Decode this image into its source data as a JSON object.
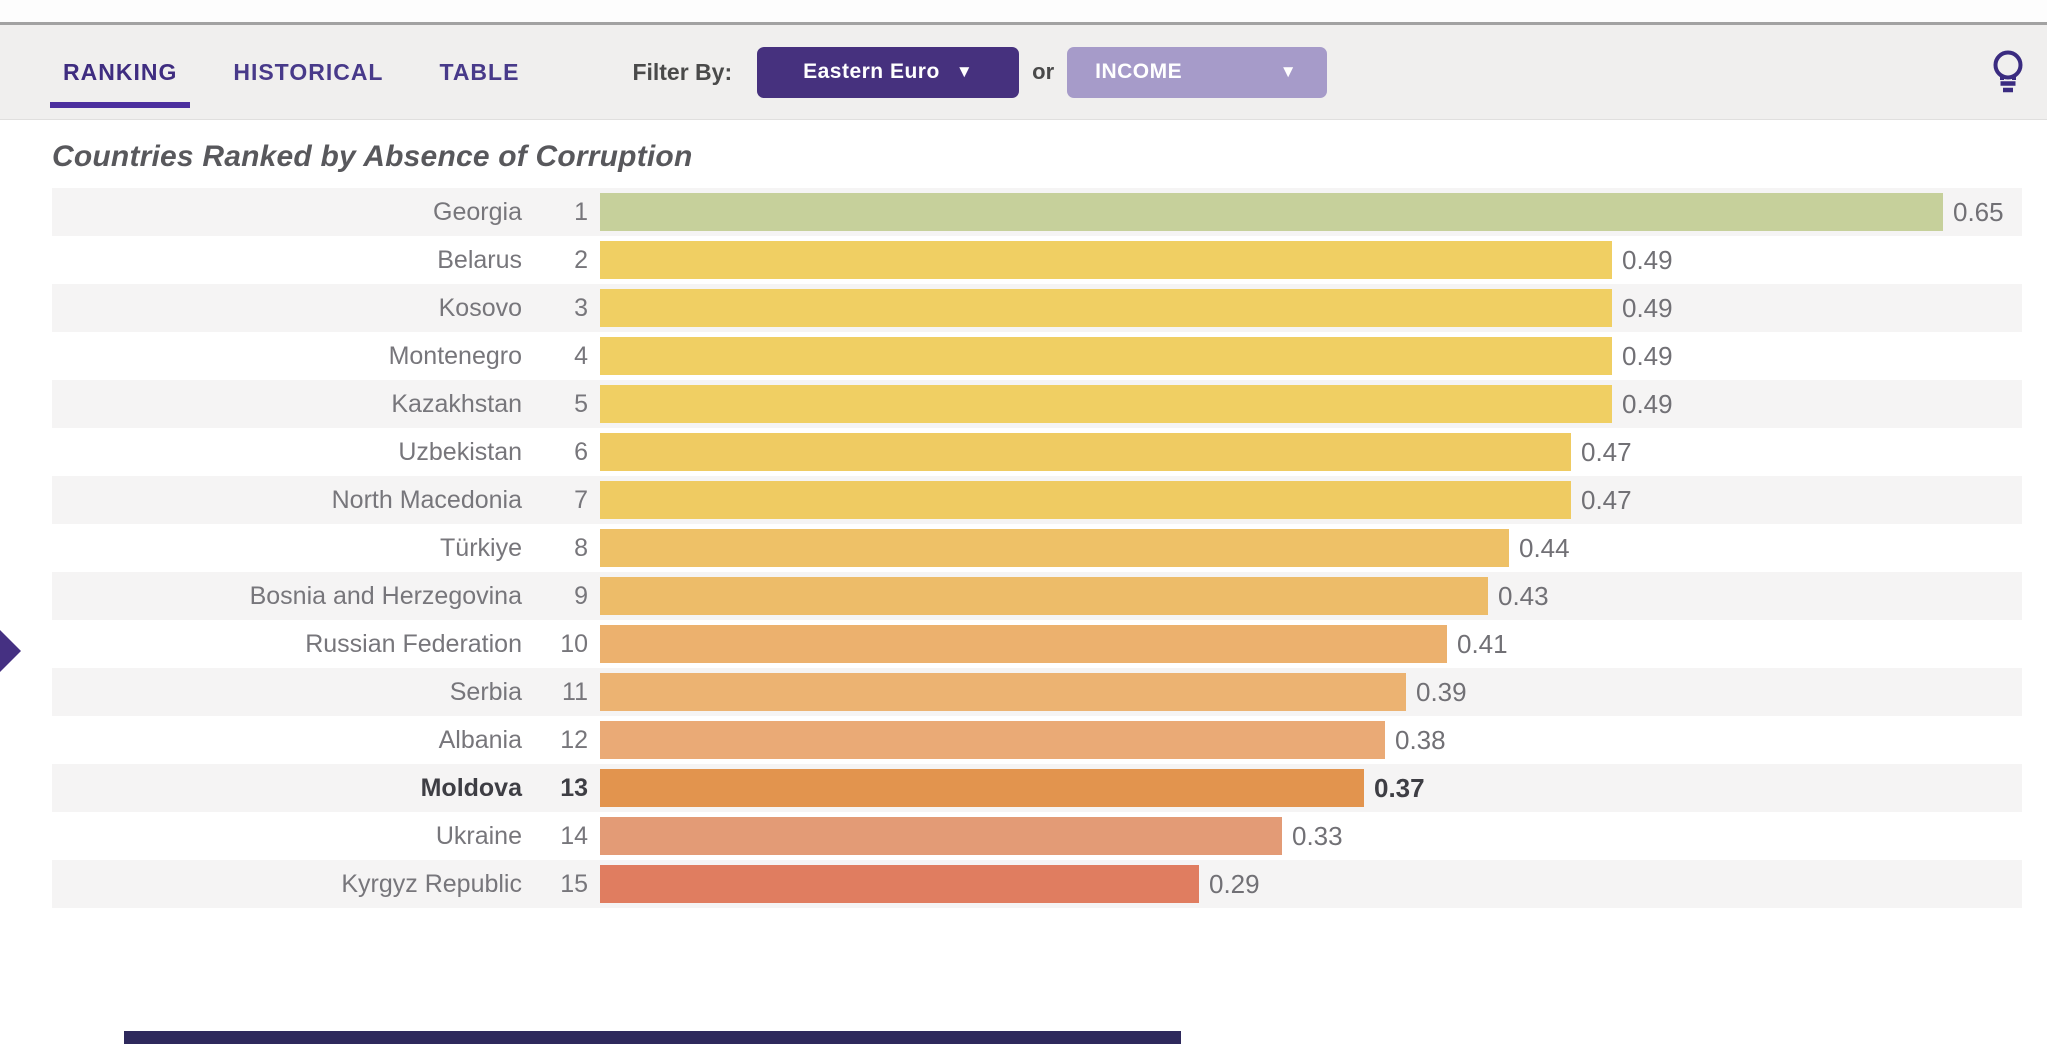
{
  "topbar": {
    "tabs": [
      {
        "label": "RANKING",
        "active": true
      },
      {
        "label": "HISTORICAL",
        "active": false
      },
      {
        "label": "TABLE",
        "active": false
      }
    ],
    "filter_label": "Filter By:",
    "region_dropdown": {
      "value": "Eastern Euro",
      "arrow": "▼"
    },
    "or_label": "or",
    "income_dropdown": {
      "value": "INCOME",
      "arrow": "▼"
    },
    "lightbulb_icon": "lightbulb-icon"
  },
  "title": "Countries Ranked by Absence of Corruption",
  "chart_data": {
    "type": "bar",
    "orientation": "horizontal",
    "title": "Countries Ranked by Absence of Corruption",
    "value_range": [
      0,
      0.65
    ],
    "value_format": "0.00",
    "highlighted_country": "Moldova",
    "rows": [
      {
        "rank": 1,
        "country": "Georgia",
        "value": 0.65,
        "color": "#c6d09b",
        "highlight": false
      },
      {
        "rank": 2,
        "country": "Belarus",
        "value": 0.49,
        "color": "#f0cf63",
        "highlight": false
      },
      {
        "rank": 3,
        "country": "Kosovo",
        "value": 0.49,
        "color": "#f0cf63",
        "highlight": false
      },
      {
        "rank": 4,
        "country": "Montenegro",
        "value": 0.49,
        "color": "#f0cf63",
        "highlight": false
      },
      {
        "rank": 5,
        "country": "Kazakhstan",
        "value": 0.49,
        "color": "#f0cf63",
        "highlight": false
      },
      {
        "rank": 6,
        "country": "Uzbekistan",
        "value": 0.47,
        "color": "#efcb62",
        "highlight": false
      },
      {
        "rank": 7,
        "country": "North Macedonia",
        "value": 0.47,
        "color": "#efcb62",
        "highlight": false
      },
      {
        "rank": 8,
        "country": "Türkiye",
        "value": 0.44,
        "color": "#eec167",
        "highlight": false
      },
      {
        "rank": 9,
        "country": "Bosnia and Herzegovina",
        "value": 0.43,
        "color": "#edbc69",
        "highlight": false
      },
      {
        "rank": 10,
        "country": "Russian Federation",
        "value": 0.41,
        "color": "#ecb16e",
        "highlight": false
      },
      {
        "rank": 11,
        "country": "Serbia",
        "value": 0.39,
        "color": "#ecb372",
        "highlight": false
      },
      {
        "rank": 12,
        "country": "Albania",
        "value": 0.38,
        "color": "#eaaa76",
        "highlight": false
      },
      {
        "rank": 13,
        "country": "Moldova",
        "value": 0.37,
        "color": "#e2944e",
        "highlight": true
      },
      {
        "rank": 14,
        "country": "Ukraine",
        "value": 0.33,
        "color": "#e39b76",
        "highlight": false
      },
      {
        "rank": 15,
        "country": "Kyrgyz Republic",
        "value": 0.29,
        "color": "#e07d60",
        "highlight": false
      }
    ]
  },
  "colors": {
    "tab_text": "#483a8a",
    "tab_underline": "#4c2f9e",
    "region_dropdown_bg": "#46317e",
    "income_dropdown_bg": "#a69bc9",
    "row_alt_bg": "#f5f4f4",
    "highlight_text": "#3e3e44",
    "arrow_indicator": "#453082"
  }
}
